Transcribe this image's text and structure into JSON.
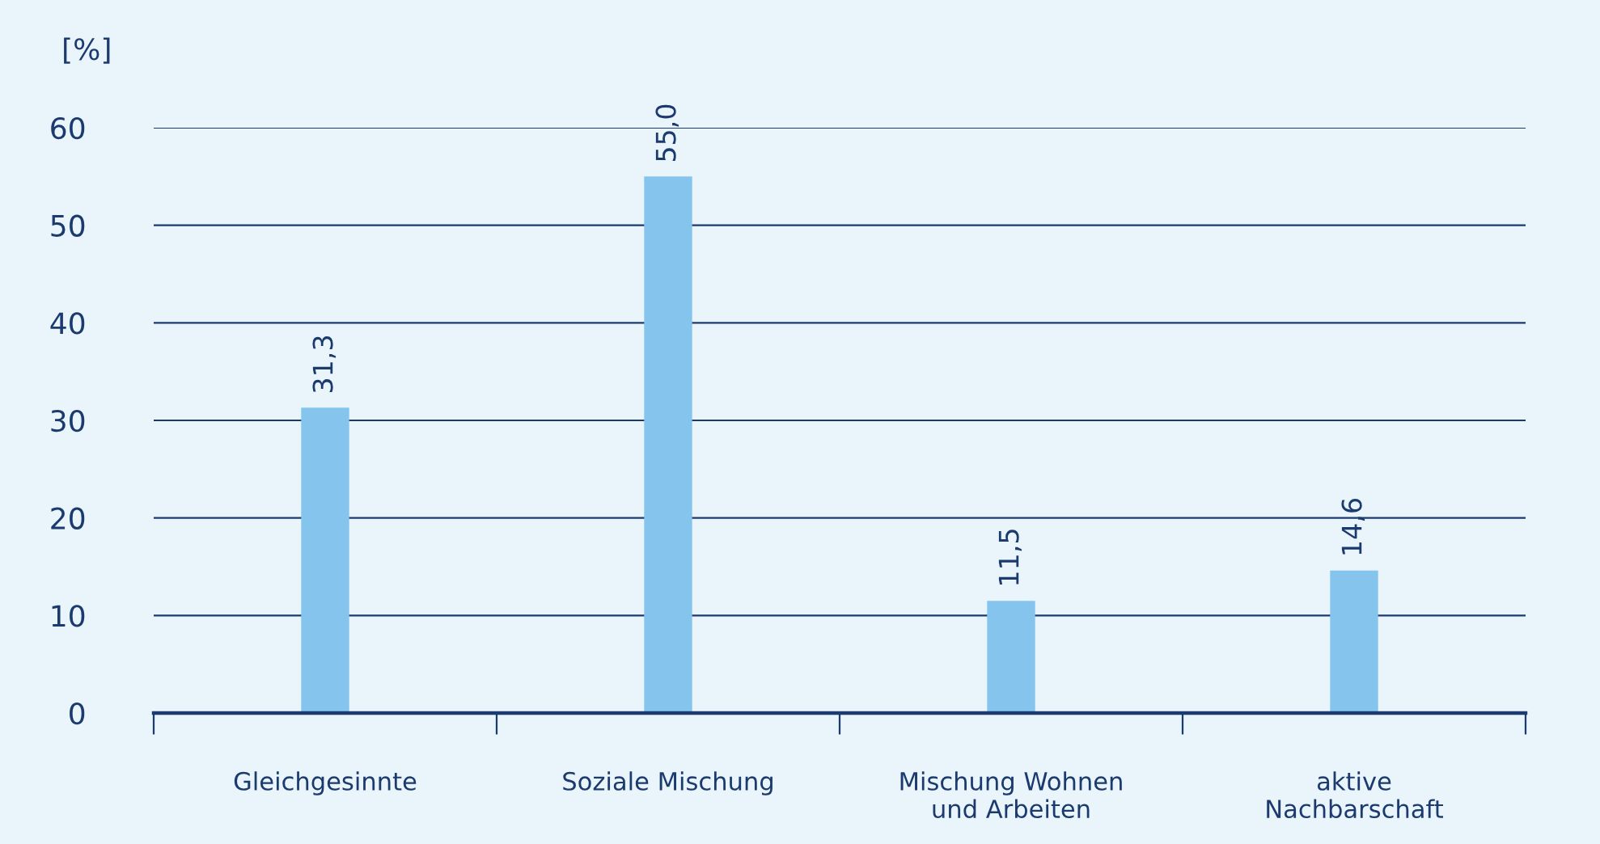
{
  "chart_data": {
    "type": "bar",
    "ylabel": "[%]",
    "categories": [
      "Gleichgesinnte",
      "Soziale Mischung",
      "Mischung Wohnen\nund Arbeiten",
      "aktive\nNachbarschaft"
    ],
    "values": [
      31.3,
      55.0,
      11.5,
      14.6
    ],
    "value_labels": [
      "31,3",
      "55,0",
      "11,5",
      "14,6"
    ],
    "color": "#85c4ec",
    "ylim": [
      0,
      60
    ],
    "yticks": [
      0,
      10,
      20,
      30,
      40,
      50,
      60
    ],
    "grid": "y",
    "legend": false
  }
}
